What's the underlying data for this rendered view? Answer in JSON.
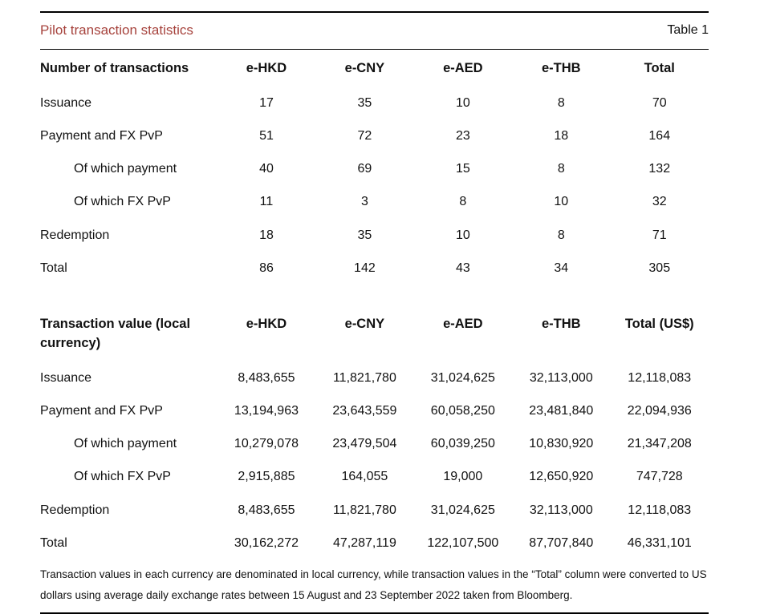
{
  "header": {
    "title": "Pilot transaction statistics",
    "table_label": "Table 1"
  },
  "colors": {
    "title_red": "#a6423c",
    "text": "#111111",
    "rule": "#000000"
  },
  "tables": [
    {
      "columns": [
        "Number of transactions",
        "e-HKD",
        "e-CNY",
        "e-AED",
        "e-THB",
        "Total"
      ],
      "rows": [
        {
          "label": "Issuance",
          "values": [
            "17",
            "35",
            "10",
            "8",
            "70"
          ]
        },
        {
          "label": "Payment and FX PvP",
          "values": [
            "51",
            "72",
            "23",
            "18",
            "164"
          ]
        },
        {
          "label": "Of which payment",
          "values": [
            "40",
            "69",
            "15",
            "8",
            "132"
          ]
        },
        {
          "label": "Of which FX PvP",
          "values": [
            "11",
            "3",
            "8",
            "10",
            "32"
          ]
        },
        {
          "label": "Redemption",
          "values": [
            "18",
            "35",
            "10",
            "8",
            "71"
          ]
        },
        {
          "label": "Total",
          "values": [
            "86",
            "142",
            "43",
            "34",
            "305"
          ]
        }
      ]
    },
    {
      "columns": [
        "Transaction value (local currency)",
        "e-HKD",
        "e-CNY",
        "e-AED",
        "e-THB",
        "Total (US$)"
      ],
      "rows": [
        {
          "label": "Issuance",
          "values": [
            "8,483,655",
            "11,821,780",
            "31,024,625",
            "32,113,000",
            "12,118,083"
          ]
        },
        {
          "label": "Payment and FX PvP",
          "values": [
            "13,194,963",
            "23,643,559",
            "60,058,250",
            "23,481,840",
            "22,094,936"
          ]
        },
        {
          "label": "Of which payment",
          "values": [
            "10,279,078",
            "23,479,504",
            "60,039,250",
            "10,830,920",
            "21,347,208"
          ]
        },
        {
          "label": "Of which FX PvP",
          "values": [
            "2,915,885",
            "164,055",
            "19,000",
            "12,650,920",
            "747,728"
          ]
        },
        {
          "label": "Redemption",
          "values": [
            "8,483,655",
            "11,821,780",
            "31,024,625",
            "32,113,000",
            "12,118,083"
          ]
        },
        {
          "label": "Total",
          "values": [
            "30,162,272",
            "47,287,119",
            "122,107,500",
            "87,707,840",
            "46,331,101"
          ]
        }
      ]
    }
  ],
  "footnote": "Transaction values in each currency are denominated in local currency, while transaction values in the “Total” column were converted to US dollars using average daily exchange rates between 15 August and 23 September 2022 taken from Bloomberg."
}
